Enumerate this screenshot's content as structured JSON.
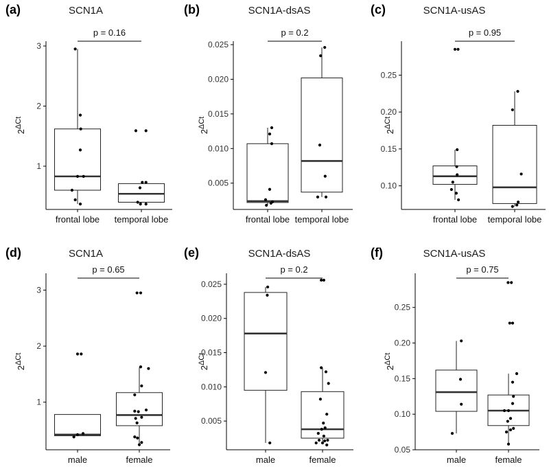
{
  "chart_data": [
    {
      "letter": "(a)",
      "title": "SCN1A",
      "type": "boxplot",
      "ylabel_base": "2",
      "ylabel_sup": "ΔCt",
      "ylim": [
        0.28,
        3.08
      ],
      "yticks": [
        1,
        2,
        3
      ],
      "ytick_labels": [
        "1",
        "2",
        "3"
      ],
      "categories": [
        "frontal lobe",
        "temporal lobe"
      ],
      "pvalue": "p = 0.16",
      "groups": [
        {
          "name": "frontal lobe",
          "whisker_low": 0.37,
          "q1": 0.6,
          "median": 0.83,
          "q3": 1.62,
          "whisker_high": 2.95,
          "points": [
            [
              -0.05,
              2.95
            ],
            [
              0.06,
              1.85
            ],
            [
              0.07,
              1.62
            ],
            [
              0.06,
              1.27
            ],
            [
              0.0,
              0.83
            ],
            [
              0.13,
              0.83
            ],
            [
              -0.12,
              0.6
            ],
            [
              -0.05,
              0.44
            ],
            [
              0.06,
              0.37
            ]
          ]
        },
        {
          "name": "temporal lobe",
          "whisker_low": 0.37,
          "q1": 0.4,
          "median": 0.54,
          "q3": 0.71,
          "whisker_high": 0.73,
          "points": [
            [
              -0.12,
              1.59
            ],
            [
              0.1,
              1.59
            ],
            [
              -0.03,
              0.64
            ],
            [
              0.02,
              0.73
            ],
            [
              0.1,
              0.73
            ],
            [
              -0.08,
              0.4
            ],
            [
              -0.02,
              0.37
            ],
            [
              0.1,
              0.37
            ]
          ]
        }
      ]
    },
    {
      "letter": "(b)",
      "title": "SCN1A-dsAS",
      "type": "boxplot",
      "ylabel_base": "2",
      "ylabel_sup": "ΔCt",
      "ylim": [
        0.0012,
        0.0255
      ],
      "yticks": [
        0.005,
        0.01,
        0.015,
        0.02,
        0.025
      ],
      "ytick_labels": [
        "0.005",
        "0.010",
        "0.015",
        "0.020",
        "0.025"
      ],
      "categories": [
        "frontal lobe",
        "temporal lobe"
      ],
      "pvalue": "p = 0.2",
      "groups": [
        {
          "name": "frontal lobe",
          "whisker_low": 0.0019,
          "q1": 0.0022,
          "median": 0.0024,
          "q3": 0.0107,
          "whisker_high": 0.013,
          "points": [
            [
              0.1,
              0.013
            ],
            [
              0.05,
              0.0121
            ],
            [
              0.1,
              0.0107
            ],
            [
              0.05,
              0.0041
            ],
            [
              -0.05,
              0.0026
            ],
            [
              0.12,
              0.0023
            ],
            [
              -0.03,
              0.0018
            ],
            [
              0.08,
              0.0021
            ]
          ]
        },
        {
          "name": "temporal lobe",
          "whisker_low": 0.003,
          "q1": 0.0037,
          "median": 0.0082,
          "q3": 0.0202,
          "whisker_high": 0.0246,
          "points": [
            [
              0.07,
              0.0246
            ],
            [
              -0.03,
              0.0234
            ],
            [
              -0.05,
              0.0105
            ],
            [
              0.08,
              0.006
            ],
            [
              -0.1,
              0.003
            ],
            [
              0.1,
              0.003
            ]
          ]
        }
      ]
    },
    {
      "letter": "(c)",
      "title": "SCN1A-usAS",
      "type": "boxplot",
      "ylabel_base": "2",
      "ylabel_sup": "ΔCt",
      "ylim": [
        0.068,
        0.296
      ],
      "yticks": [
        0.1,
        0.15,
        0.2,
        0.25
      ],
      "ytick_labels": [
        "0.10",
        "0.15",
        "0.20",
        "0.25"
      ],
      "categories": [
        "frontal lobe",
        "temporal lobe"
      ],
      "pvalue": "p = 0.95",
      "groups": [
        {
          "name": "frontal lobe",
          "whisker_low": 0.081,
          "q1": 0.102,
          "median": 0.113,
          "q3": 0.127,
          "whisker_high": 0.149,
          "points": [
            [
              0.0,
              0.285
            ],
            [
              0.07,
              0.285
            ],
            [
              0.05,
              0.149
            ],
            [
              0.04,
              0.126
            ],
            [
              0.05,
              0.115
            ],
            [
              -0.05,
              0.105
            ],
            [
              -0.08,
              0.095
            ],
            [
              0.03,
              0.09
            ],
            [
              0.08,
              0.081
            ]
          ]
        },
        {
          "name": "temporal lobe",
          "whisker_low": 0.072,
          "q1": 0.076,
          "median": 0.098,
          "q3": 0.182,
          "whisker_high": 0.228,
          "points": [
            [
              0.07,
              0.228
            ],
            [
              -0.05,
              0.203
            ],
            [
              0.15,
              0.116
            ],
            [
              0.08,
              0.078
            ],
            [
              0.05,
              0.074
            ],
            [
              -0.05,
              0.072
            ]
          ]
        }
      ]
    },
    {
      "letter": "(d)",
      "title": "SCN1A",
      "type": "boxplot",
      "ylabel_base": "2",
      "ylabel_sup": "ΔCt",
      "ylim": [
        0.15,
        3.3
      ],
      "yticks": [
        1,
        2,
        3
      ],
      "ytick_labels": [
        "1",
        "2",
        "3"
      ],
      "categories": [
        "male",
        "female"
      ],
      "pvalue": "p = 0.65",
      "groups": [
        {
          "name": "male",
          "whisker_low": 0.4,
          "q1": 0.4,
          "median": 0.42,
          "q3": 0.78,
          "whisker_high": 0.78,
          "points": [
            [
              0.0,
              1.86
            ],
            [
              0.08,
              1.86
            ],
            [
              -0.08,
              0.38
            ],
            [
              0.0,
              0.42
            ],
            [
              0.12,
              0.44
            ]
          ]
        },
        {
          "name": "female",
          "whisker_low": 0.26,
          "q1": 0.58,
          "median": 0.77,
          "q3": 1.17,
          "whisker_high": 1.62,
          "points": [
            [
              -0.05,
              2.95
            ],
            [
              0.03,
              2.95
            ],
            [
              0.03,
              1.63
            ],
            [
              0.2,
              1.6
            ],
            [
              0.05,
              1.29
            ],
            [
              -0.1,
              1.13
            ],
            [
              0.15,
              0.86
            ],
            [
              -0.1,
              0.84
            ],
            [
              -0.02,
              0.83
            ],
            [
              0.05,
              0.73
            ],
            [
              -0.08,
              0.71
            ],
            [
              -0.05,
              0.63
            ],
            [
              -0.1,
              0.38
            ],
            [
              -0.04,
              0.36
            ],
            [
              0.05,
              0.28
            ],
            [
              0.0,
              0.24
            ]
          ]
        }
      ]
    },
    {
      "letter": "(e)",
      "title": "SCN1A-dsAS",
      "type": "boxplot",
      "ylabel_base": "2",
      "ylabel_sup": "ΔCt",
      "ylim": [
        0.0008,
        0.0266
      ],
      "yticks": [
        0.005,
        0.01,
        0.015,
        0.02,
        0.025
      ],
      "ytick_labels": [
        "0.005",
        "0.010",
        "0.015",
        "0.020",
        "0.025"
      ],
      "categories": [
        "male",
        "female"
      ],
      "pvalue": "p = 0.2",
      "groups": [
        {
          "name": "male",
          "whisker_low": 0.0018,
          "q1": 0.0095,
          "median": 0.0178,
          "q3": 0.0238,
          "whisker_high": 0.0246,
          "points": [
            [
              0.05,
              0.0246
            ],
            [
              0.04,
              0.0234
            ],
            [
              0.0,
              0.0121
            ],
            [
              0.1,
              0.0018
            ]
          ]
        },
        {
          "name": "female",
          "whisker_low": 0.0018,
          "q1": 0.0025,
          "median": 0.0038,
          "q3": 0.0093,
          "whisker_high": 0.0128,
          "points": [
            [
              -0.03,
              0.0256
            ],
            [
              0.03,
              0.0256
            ],
            [
              -0.03,
              0.0128
            ],
            [
              0.08,
              0.0122
            ],
            [
              0.14,
              0.0105
            ],
            [
              -0.05,
              0.0082
            ],
            [
              0.1,
              0.006
            ],
            [
              0.02,
              0.0047
            ],
            [
              0.06,
              0.004
            ],
            [
              -0.02,
              0.0038
            ],
            [
              -0.1,
              0.0032
            ],
            [
              0.03,
              0.0028
            ],
            [
              -0.08,
              0.0022
            ],
            [
              0.12,
              0.0022
            ],
            [
              0.05,
              0.0021
            ],
            [
              -0.15,
              0.0018
            ],
            [
              0.0,
              0.0018
            ],
            [
              0.1,
              0.0015
            ]
          ]
        }
      ]
    },
    {
      "letter": "(f)",
      "title": "SCN1A-usAS",
      "type": "boxplot",
      "ylabel_base": "2",
      "ylabel_sup": "ΔCt",
      "ylim": [
        0.05,
        0.298
      ],
      "yticks": [
        0.05,
        0.1,
        0.15,
        0.2,
        0.25
      ],
      "ytick_labels": [
        "0.05",
        "0.10",
        "0.15",
        "0.20",
        "0.25"
      ],
      "categories": [
        "male",
        "female"
      ],
      "pvalue": "p = 0.75",
      "groups": [
        {
          "name": "male",
          "whisker_low": 0.073,
          "q1": 0.104,
          "median": 0.131,
          "q3": 0.162,
          "whisker_high": 0.203,
          "points": [
            [
              0.12,
              0.203
            ],
            [
              0.1,
              0.149
            ],
            [
              0.12,
              0.114
            ],
            [
              -0.1,
              0.073
            ]
          ]
        },
        {
          "name": "female",
          "whisker_low": 0.058,
          "q1": 0.084,
          "median": 0.105,
          "q3": 0.127,
          "whisker_high": 0.157,
          "points": [
            [
              -0.01,
              0.285
            ],
            [
              0.07,
              0.285
            ],
            [
              0.03,
              0.228
            ],
            [
              0.1,
              0.228
            ],
            [
              0.2,
              0.157
            ],
            [
              0.1,
              0.145
            ],
            [
              0.12,
              0.125
            ],
            [
              -0.1,
              0.105
            ],
            [
              0.0,
              0.105
            ],
            [
              0.1,
              0.115
            ],
            [
              0.05,
              0.094
            ],
            [
              -0.02,
              0.09
            ],
            [
              0.12,
              0.08
            ],
            [
              0.05,
              0.078
            ],
            [
              -0.05,
              0.075
            ],
            [
              0.0,
              0.058
            ]
          ]
        }
      ]
    }
  ]
}
